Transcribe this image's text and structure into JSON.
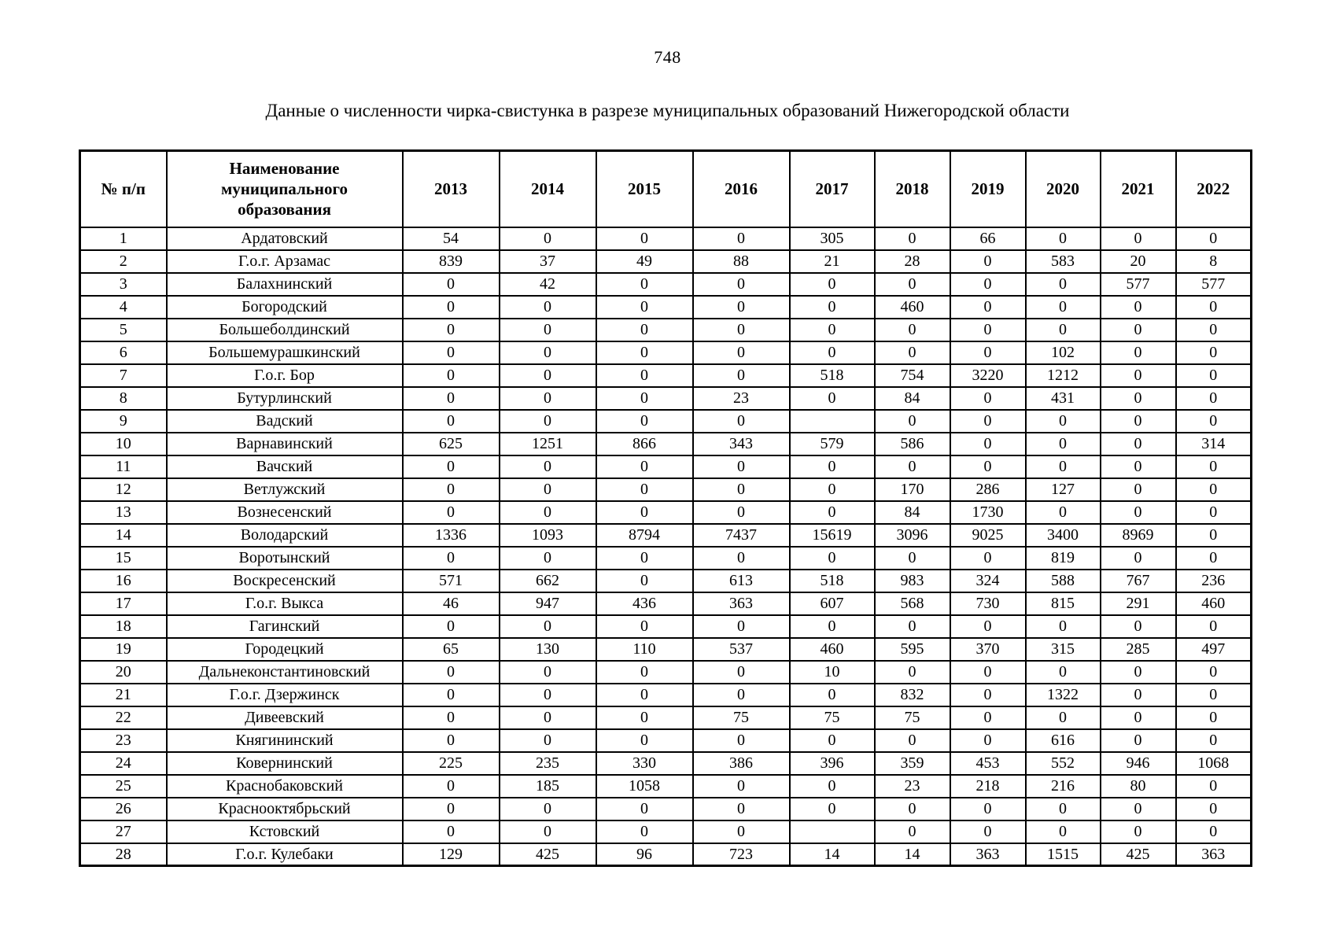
{
  "page": {
    "number": "748"
  },
  "document": {
    "title": "Данные о численности чирка-свистунка в разрезе муниципальных образований Нижегородской области"
  },
  "table": {
    "headers": {
      "index": "№ п/п",
      "name": "Наименование муниципального образования",
      "years": [
        "2013",
        "2014",
        "2015",
        "2016",
        "2017",
        "2018",
        "2019",
        "2020",
        "2021",
        "2022"
      ]
    },
    "rows": [
      {
        "n": "1",
        "name": "Ардатовский",
        "values": [
          "54",
          "0",
          "0",
          "0",
          "305",
          "0",
          "66",
          "0",
          "0",
          "0"
        ]
      },
      {
        "n": "2",
        "name": "Г.о.г. Арзамас",
        "values": [
          "839",
          "37",
          "49",
          "88",
          "21",
          "28",
          "0",
          "583",
          "20",
          "8"
        ]
      },
      {
        "n": "3",
        "name": "Балахнинский",
        "values": [
          "0",
          "42",
          "0",
          "0",
          "0",
          "0",
          "0",
          "0",
          "577",
          "577"
        ]
      },
      {
        "n": "4",
        "name": "Богородский",
        "values": [
          "0",
          "0",
          "0",
          "0",
          "0",
          "460",
          "0",
          "0",
          "0",
          "0"
        ]
      },
      {
        "n": "5",
        "name": "Большеболдинский",
        "values": [
          "0",
          "0",
          "0",
          "0",
          "0",
          "0",
          "0",
          "0",
          "0",
          "0"
        ]
      },
      {
        "n": "6",
        "name": "Большемурашкинский",
        "values": [
          "0",
          "0",
          "0",
          "0",
          "0",
          "0",
          "0",
          "102",
          "0",
          "0"
        ]
      },
      {
        "n": "7",
        "name": "Г.о.г. Бор",
        "values": [
          "0",
          "0",
          "0",
          "0",
          "518",
          "754",
          "3220",
          "1212",
          "0",
          "0"
        ]
      },
      {
        "n": "8",
        "name": "Бутурлинский",
        "values": [
          "0",
          "0",
          "0",
          "23",
          "0",
          "84",
          "0",
          "431",
          "0",
          "0"
        ]
      },
      {
        "n": "9",
        "name": "Вадский",
        "values": [
          "0",
          "0",
          "0",
          "0",
          "",
          "0",
          "0",
          "0",
          "0",
          "0"
        ]
      },
      {
        "n": "10",
        "name": "Варнавинский",
        "values": [
          "625",
          "1251",
          "866",
          "343",
          "579",
          "586",
          "0",
          "0",
          "0",
          "314"
        ]
      },
      {
        "n": "11",
        "name": "Вачский",
        "values": [
          "0",
          "0",
          "0",
          "0",
          "0",
          "0",
          "0",
          "0",
          "0",
          "0"
        ]
      },
      {
        "n": "12",
        "name": "Ветлужский",
        "values": [
          "0",
          "0",
          "0",
          "0",
          "0",
          "170",
          "286",
          "127",
          "0",
          "0"
        ]
      },
      {
        "n": "13",
        "name": "Вознесенский",
        "values": [
          "0",
          "0",
          "0",
          "0",
          "0",
          "84",
          "1730",
          "0",
          "0",
          "0"
        ]
      },
      {
        "n": "14",
        "name": "Володарский",
        "values": [
          "1336",
          "1093",
          "8794",
          "7437",
          "15619",
          "3096",
          "9025",
          "3400",
          "8969",
          "0"
        ]
      },
      {
        "n": "15",
        "name": "Воротынский",
        "values": [
          "0",
          "0",
          "0",
          "0",
          "0",
          "0",
          "0",
          "819",
          "0",
          "0"
        ]
      },
      {
        "n": "16",
        "name": "Воскресенский",
        "values": [
          "571",
          "662",
          "0",
          "613",
          "518",
          "983",
          "324",
          "588",
          "767",
          "236"
        ]
      },
      {
        "n": "17",
        "name": "Г.о.г. Выкса",
        "values": [
          "46",
          "947",
          "436",
          "363",
          "607",
          "568",
          "730",
          "815",
          "291",
          "460"
        ]
      },
      {
        "n": "18",
        "name": "Гагинский",
        "values": [
          "0",
          "0",
          "0",
          "0",
          "0",
          "0",
          "0",
          "0",
          "0",
          "0"
        ]
      },
      {
        "n": "19",
        "name": "Городецкий",
        "values": [
          "65",
          "130",
          "110",
          "537",
          "460",
          "595",
          "370",
          "315",
          "285",
          "497"
        ]
      },
      {
        "n": "20",
        "name": "Дальнеконстантиновский",
        "values": [
          "0",
          "0",
          "0",
          "0",
          "10",
          "0",
          "0",
          "0",
          "0",
          "0"
        ]
      },
      {
        "n": "21",
        "name": "Г.о.г. Дзержинск",
        "values": [
          "0",
          "0",
          "0",
          "0",
          "0",
          "832",
          "0",
          "1322",
          "0",
          "0"
        ]
      },
      {
        "n": "22",
        "name": "Дивеевский",
        "values": [
          "0",
          "0",
          "0",
          "75",
          "75",
          "75",
          "0",
          "0",
          "0",
          "0"
        ]
      },
      {
        "n": "23",
        "name": "Княгининский",
        "values": [
          "0",
          "0",
          "0",
          "0",
          "0",
          "0",
          "0",
          "616",
          "0",
          "0"
        ]
      },
      {
        "n": "24",
        "name": "Ковернинский",
        "values": [
          "225",
          "235",
          "330",
          "386",
          "396",
          "359",
          "453",
          "552",
          "946",
          "1068"
        ]
      },
      {
        "n": "25",
        "name": "Краснобаковский",
        "values": [
          "0",
          "185",
          "1058",
          "0",
          "0",
          "23",
          "218",
          "216",
          "80",
          "0"
        ]
      },
      {
        "n": "26",
        "name": "Краснооктябрьский",
        "values": [
          "0",
          "0",
          "0",
          "0",
          "0",
          "0",
          "0",
          "0",
          "0",
          "0"
        ]
      },
      {
        "n": "27",
        "name": "Кстовский",
        "values": [
          "0",
          "0",
          "0",
          "0",
          "",
          "0",
          "0",
          "0",
          "0",
          "0"
        ]
      },
      {
        "n": "28",
        "name": "Г.о.г. Кулебаки",
        "values": [
          "129",
          "425",
          "96",
          "723",
          "14",
          "14",
          "363",
          "1515",
          "425",
          "363"
        ]
      }
    ]
  }
}
